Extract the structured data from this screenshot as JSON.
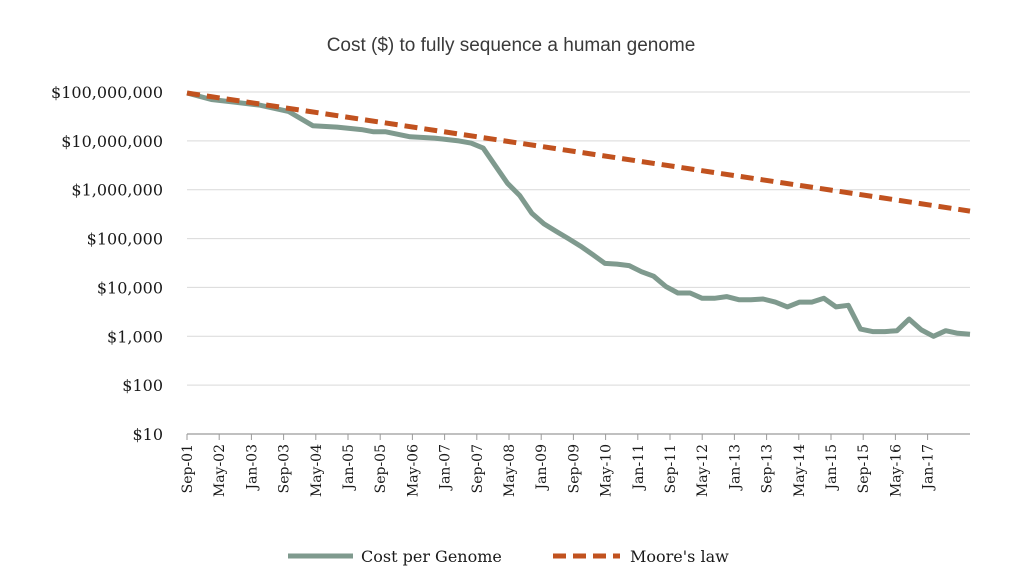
{
  "chart_data": {
    "type": "line",
    "title": "Cost ($) to fully sequence a human genome",
    "xlabel": "",
    "ylabel": "",
    "y_scale": "log",
    "ylim": [
      10,
      100000000
    ],
    "grid": true,
    "legend_position": "bottom",
    "y_ticks": [
      10,
      100,
      1000,
      10000,
      100000,
      1000000,
      10000000,
      100000000
    ],
    "y_tick_labels": [
      "$10",
      "$100",
      "$1,000",
      "$10,000",
      "$100,000",
      "$1,000,000",
      "$10,000,000",
      "$100,000,000"
    ],
    "x_tick_labels": [
      "Sep-01",
      "May-02",
      "Jan-03",
      "Sep-03",
      "May-04",
      "Jan-05",
      "Sep-05",
      "May-06",
      "Jan-07",
      "Sep-07",
      "May-08",
      "Jan-09",
      "Sep-09",
      "May-10",
      "Jan-11",
      "Sep-11",
      "May-12",
      "Jan-13",
      "Sep-13",
      "May-14",
      "Jan-15",
      "Sep-15",
      "May-16",
      "Jan-17"
    ],
    "x_range": [
      "2001-09",
      "2017-10"
    ],
    "series": [
      {
        "name": "Cost per Genome",
        "color": "#7f9a8e",
        "style": "solid",
        "x": [
          "2001-09",
          "2002-03",
          "2002-09",
          "2003-03",
          "2003-10",
          "2004-04",
          "2004-10",
          "2005-04",
          "2005-07",
          "2005-10",
          "2006-04",
          "2006-10",
          "2007-04",
          "2007-07",
          "2007-10",
          "2008-01",
          "2008-04",
          "2008-07",
          "2008-10",
          "2009-01",
          "2009-04",
          "2009-07",
          "2009-10",
          "2010-01",
          "2010-04",
          "2010-07",
          "2010-10",
          "2011-01",
          "2011-04",
          "2011-07",
          "2011-10",
          "2012-01",
          "2012-04",
          "2012-07",
          "2012-10",
          "2013-01",
          "2013-04",
          "2013-07",
          "2013-10",
          "2014-01",
          "2014-04",
          "2014-07",
          "2014-10",
          "2015-01",
          "2015-04",
          "2015-07",
          "2015-10",
          "2016-01",
          "2016-04",
          "2016-07",
          "2016-10",
          "2017-01",
          "2017-04",
          "2017-07",
          "2017-10"
        ],
        "y": [
          95263072,
          70175437,
          61448421,
          53751684,
          40157400,
          20442576,
          19150000,
          17000000,
          15300000,
          15300000,
          12100000,
          11400000,
          10000000,
          9000000,
          7100000,
          3100000,
          1350000,
          760000,
          330000,
          200000,
          140000,
          100000,
          70000,
          47000,
          31000,
          30000,
          28000,
          21000,
          17000,
          10500,
          7700,
          7700,
          6000,
          6000,
          6500,
          5600,
          5600,
          5800,
          5000,
          4000,
          5000,
          5000,
          6000,
          4000,
          4300,
          1400,
          1250,
          1250,
          1300,
          2250,
          1350,
          1000,
          1300,
          1150,
          1100
        ]
      },
      {
        "name": "Moore's law",
        "color": "#c1521f",
        "style": "dashed",
        "x": [
          "2001-09",
          "2017-10"
        ],
        "y": [
          95263072,
          365000
        ]
      }
    ]
  }
}
